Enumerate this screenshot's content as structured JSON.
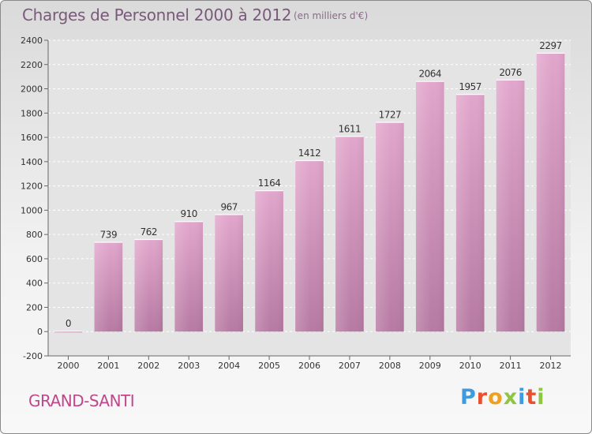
{
  "header": {
    "title": "Charges de Personnel 2000 à 2012",
    "subtitle": "(en milliers d'€)"
  },
  "footer": {
    "commune": "GRAND-SANTI",
    "logo_text": "Proxiti"
  },
  "colors": {
    "bar_light": "#e2a6cc",
    "bar_dark": "#b77aa3",
    "title": "#7a5a7a",
    "commune": "#c0478a"
  },
  "chart_data": {
    "type": "bar",
    "categories": [
      "2000",
      "2001",
      "2002",
      "2003",
      "2004",
      "2005",
      "2006",
      "2007",
      "2008",
      "2009",
      "2010",
      "2011",
      "2012"
    ],
    "values": [
      0,
      739,
      762,
      910,
      967,
      1164,
      1412,
      1611,
      1727,
      2064,
      1957,
      2076,
      2297
    ],
    "ylim": [
      -200,
      2400
    ],
    "yticks": [
      -200,
      0,
      200,
      400,
      600,
      800,
      1000,
      1200,
      1400,
      1600,
      1800,
      2000,
      2200,
      2400
    ],
    "grid": true
  }
}
